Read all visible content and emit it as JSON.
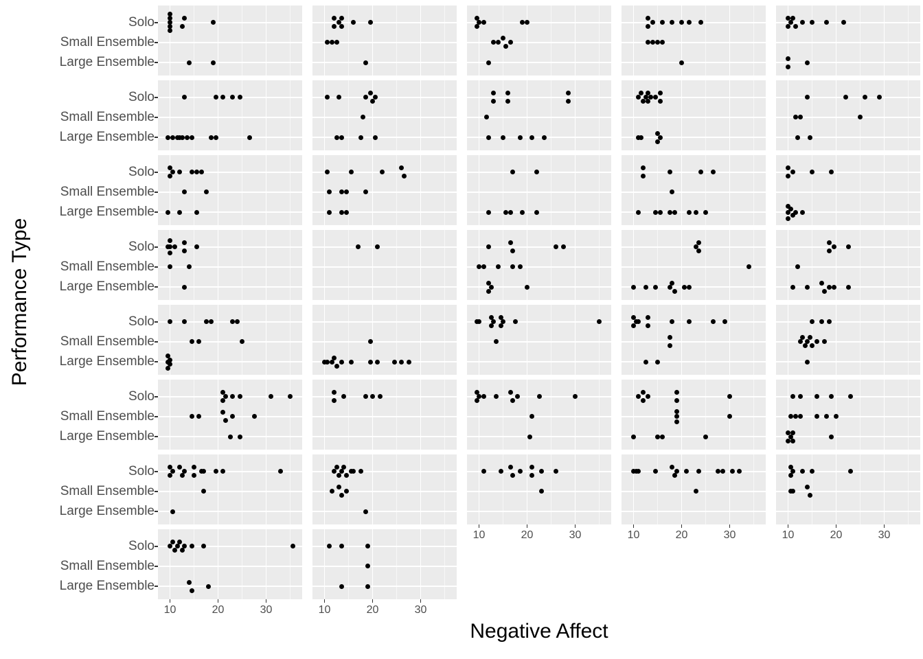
{
  "chart_data": {
    "type": "scatter",
    "title": "",
    "xlabel": "Negative Affect",
    "ylabel": "Performance Type",
    "x_ticks": [
      10,
      20,
      30
    ],
    "x_minor": [
      15,
      25,
      35
    ],
    "xlim": [
      7.5,
      37.5
    ],
    "y_categories": [
      "Solo",
      "Small Ensemble",
      "Large Ensemble"
    ],
    "grid": "on",
    "legend": "none",
    "point_color": "#000000",
    "panel_bg": "#EBEBEB",
    "grid_color": "#FFFFFF",
    "axis_text_color": "#4D4D4D",
    "tick_color": "#333333",
    "layout": {
      "ncol": 5,
      "nrow": 8,
      "n_facets": 37,
      "facets_in_last_row": 2
    },
    "facets": [
      {
        "r": 1,
        "c": 1,
        "pts": [
          [
            [
              10,
              -2
            ],
            [
              10,
              -1
            ],
            10,
            [
              10,
              1
            ],
            [
              10,
              2
            ],
            [
              12.5,
              1
            ],
            [
              13,
              -1
            ],
            19
          ],
          [],
          [
            14,
            19
          ]
        ]
      },
      {
        "r": 1,
        "c": 2,
        "pts": [
          [
            [
              12,
              -1
            ],
            [
              12,
              1
            ],
            13,
            [
              13.5,
              -1
            ],
            [
              13.5,
              1
            ],
            16,
            19.5
          ],
          [
            10.5,
            11.5,
            12.5
          ],
          [
            18.5
          ]
        ]
      },
      {
        "r": 1,
        "c": 3,
        "pts": [
          [
            [
              9.5,
              -1
            ],
            [
              9.5,
              1
            ],
            10,
            11,
            19,
            20
          ],
          [
            13,
            14,
            [
              15,
              -1
            ],
            [
              15.5,
              1
            ],
            16.5
          ],
          [
            12
          ]
        ]
      },
      {
        "r": 1,
        "c": 4,
        "pts": [
          [
            [
              13,
              -1
            ],
            [
              13,
              1
            ],
            14,
            16,
            18,
            20,
            21.5,
            24
          ],
          [
            13,
            14,
            15,
            16
          ],
          [
            20
          ]
        ]
      },
      {
        "r": 1,
        "c": 5,
        "pts": [
          [
            [
              10,
              -1
            ],
            [
              10,
              1
            ],
            10.5,
            [
              11,
              -1
            ],
            [
              11.5,
              1
            ],
            13,
            15,
            18,
            21.5
          ],
          [],
          [
            [
              10,
              -1
            ],
            [
              10,
              1
            ],
            14
          ]
        ]
      },
      {
        "r": 2,
        "c": 1,
        "pts": [
          [
            13,
            19.5,
            21,
            23,
            24.5
          ],
          [],
          [
            9.5,
            10.5,
            11.5,
            12,
            12.5,
            13.5,
            14.5,
            18.5,
            19.5,
            26.5
          ]
        ]
      },
      {
        "r": 2,
        "c": 2,
        "pts": [
          [
            10.5,
            13,
            18.5,
            [
              19.5,
              -1
            ],
            [
              20,
              1
            ],
            20.5
          ],
          [
            18
          ],
          [
            12.5,
            13.5,
            17.5,
            20.5
          ]
        ]
      },
      {
        "r": 2,
        "c": 3,
        "pts": [
          [
            [
              13,
              -1
            ],
            [
              13,
              1
            ],
            [
              16,
              -1
            ],
            [
              16,
              1
            ],
            [
              28.5,
              -1
            ],
            [
              28.5,
              1
            ]
          ],
          [
            11.5
          ],
          [
            12,
            15,
            18.5,
            21,
            23.5
          ]
        ]
      },
      {
        "r": 2,
        "c": 4,
        "pts": [
          [
            11,
            [
              11.5,
              -1
            ],
            [
              12,
              1
            ],
            12.5,
            [
              13,
              -1
            ],
            [
              13,
              1
            ],
            13.5,
            14.5,
            [
              15.5,
              -1
            ],
            [
              15.5,
              1
            ]
          ],
          [],
          [
            11,
            11.5,
            [
              15,
              -1
            ],
            [
              15,
              1
            ],
            15.5
          ]
        ]
      },
      {
        "r": 2,
        "c": 5,
        "pts": [
          [
            14,
            22,
            26,
            29
          ],
          [
            11.5,
            12.5,
            25
          ],
          [
            12,
            14.5
          ]
        ]
      },
      {
        "r": 3,
        "c": 1,
        "pts": [
          [
            [
              10,
              -1
            ],
            [
              10,
              1
            ],
            10.5,
            12,
            14.5,
            15.5,
            16.5
          ],
          [
            13,
            17.5
          ],
          [
            9.5,
            12,
            15.5
          ]
        ]
      },
      {
        "r": 3,
        "c": 2,
        "pts": [
          [
            10.5,
            15.5,
            22,
            [
              26,
              -1
            ],
            [
              26.5,
              1
            ]
          ],
          [
            11,
            13.5,
            14.5,
            18.5
          ],
          [
            11,
            13.5,
            14.5
          ]
        ]
      },
      {
        "r": 3,
        "c": 3,
        "pts": [
          [
            17,
            22
          ],
          [],
          [
            12,
            15.5,
            16.5,
            19,
            22
          ]
        ]
      },
      {
        "r": 3,
        "c": 4,
        "pts": [
          [
            [
              12,
              -1
            ],
            [
              12,
              1
            ],
            17.5,
            24,
            26.5
          ],
          [
            18
          ],
          [
            11,
            14.5,
            15.5,
            17.5,
            18.5,
            21.5,
            23,
            25
          ]
        ]
      },
      {
        "r": 3,
        "c": 5,
        "pts": [
          [
            [
              10,
              -1
            ],
            [
              10,
              1
            ],
            11,
            15,
            19
          ],
          [],
          [
            [
              10,
              -1.5
            ],
            10,
            [
              10,
              1.5
            ],
            [
              10.5,
              -0.7
            ],
            [
              11,
              0.7
            ],
            11.5,
            13
          ]
        ]
      },
      {
        "r": 4,
        "c": 1,
        "pts": [
          [
            9.5,
            [
              10,
              -1.5
            ],
            10,
            [
              10,
              1.5
            ],
            11,
            [
              13,
              -1
            ],
            [
              13,
              1
            ],
            15.5
          ],
          [
            10,
            14
          ],
          [
            13
          ]
        ]
      },
      {
        "r": 4,
        "c": 2,
        "pts": [
          [
            17,
            21
          ],
          [],
          []
        ]
      },
      {
        "r": 4,
        "c": 3,
        "pts": [
          [
            12,
            [
              16.5,
              -1
            ],
            [
              17,
              1
            ],
            26,
            27.5
          ],
          [
            10,
            11,
            14,
            17,
            18.5
          ],
          [
            [
              12,
              -1
            ],
            [
              12,
              1
            ],
            12.5,
            20
          ]
        ]
      },
      {
        "r": 4,
        "c": 4,
        "pts": [
          [
            23,
            [
              23.5,
              -1
            ],
            [
              23.5,
              1
            ]
          ],
          [
            34
          ],
          [
            10,
            12.5,
            14.5,
            17.5,
            [
              18,
              -1
            ],
            [
              18.5,
              1
            ],
            20.5,
            21.5
          ]
        ]
      },
      {
        "r": 4,
        "c": 5,
        "pts": [
          [
            [
              18.5,
              -1
            ],
            [
              18.5,
              1
            ],
            19.5,
            22.5
          ],
          [
            12
          ],
          [
            11,
            14,
            [
              17,
              -1
            ],
            [
              17.5,
              1
            ],
            18.5,
            19.5,
            22.5
          ]
        ]
      },
      {
        "r": 5,
        "c": 1,
        "pts": [
          [
            10,
            13,
            17.5,
            18.5,
            23,
            24
          ],
          [
            14.5,
            16,
            25
          ],
          [
            [
              9.5,
              -1.5
            ],
            9.5,
            [
              9.5,
              1.5
            ],
            [
              10,
              -0.5
            ],
            [
              10,
              0.5
            ]
          ]
        ]
      },
      {
        "r": 5,
        "c": 2,
        "pts": [
          [],
          [
            19.5
          ],
          [
            10,
            10.5,
            11.5,
            [
              12,
              -1
            ],
            [
              12.5,
              1
            ],
            13.5,
            15.5,
            19.5,
            21,
            24.5,
            26,
            27.5
          ]
        ]
      },
      {
        "r": 5,
        "c": 3,
        "pts": [
          [
            9.5,
            10,
            [
              12.5,
              -1
            ],
            [
              12.5,
              1
            ],
            13,
            [
              14.5,
              -1
            ],
            [
              14.5,
              1
            ],
            15,
            17.5,
            35
          ],
          [
            13.5
          ],
          []
        ]
      },
      {
        "r": 5,
        "c": 4,
        "pts": [
          [
            [
              10,
              -1
            ],
            [
              10,
              1
            ],
            10.5,
            11,
            [
              13,
              -1
            ],
            [
              13,
              1
            ],
            18,
            21.5,
            26.5,
            29
          ],
          [
            [
              17.5,
              -1
            ],
            [
              17.5,
              1
            ]
          ],
          [
            12.5,
            15
          ]
        ]
      },
      {
        "r": 5,
        "c": 5,
        "pts": [
          [
            15,
            17,
            18.5
          ],
          [
            12.5,
            [
              13,
              -1
            ],
            [
              13.5,
              1
            ],
            14,
            [
              14.5,
              -1
            ],
            [
              15,
              1
            ],
            16,
            17.5
          ],
          [
            14
          ]
        ]
      },
      {
        "r": 6,
        "c": 1,
        "pts": [
          [
            [
              21,
              -1
            ],
            [
              21,
              1
            ],
            21.5,
            23,
            24.5,
            31,
            35
          ],
          [
            14.5,
            16,
            [
              21,
              -1
            ],
            [
              21.5,
              1
            ],
            23,
            27.5
          ],
          [
            22.5,
            24.5
          ]
        ]
      },
      {
        "r": 6,
        "c": 2,
        "pts": [
          [
            [
              12,
              -1
            ],
            [
              12,
              1
            ],
            14,
            18.5,
            20,
            21.5
          ],
          [],
          []
        ]
      },
      {
        "r": 6,
        "c": 3,
        "pts": [
          [
            [
              9.5,
              -1
            ],
            [
              9.5,
              1
            ],
            10,
            11,
            13.5,
            [
              16.5,
              -1
            ],
            [
              17,
              1
            ],
            18,
            22.5,
            30
          ],
          [
            21
          ],
          [
            20.5
          ]
        ]
      },
      {
        "r": 6,
        "c": 4,
        "pts": [
          [
            11,
            [
              12,
              -1
            ],
            [
              12,
              1
            ],
            13,
            [
              19,
              -1
            ],
            [
              19,
              1
            ],
            30
          ],
          [
            [
              19,
              -1.3
            ],
            19,
            [
              19,
              1.3
            ],
            30
          ],
          [
            10,
            15,
            16,
            25
          ]
        ]
      },
      {
        "r": 6,
        "c": 5,
        "pts": [
          [
            11,
            12.5,
            16,
            19,
            23
          ],
          [
            10.5,
            11.5,
            12.5,
            16,
            18,
            20
          ],
          [
            [
              10,
              -1
            ],
            [
              10,
              1
            ],
            10.5,
            [
              11,
              -1
            ],
            [
              11,
              1
            ],
            19
          ]
        ]
      },
      {
        "r": 7,
        "c": 1,
        "pts": [
          [
            [
              10,
              -1
            ],
            [
              10,
              1
            ],
            10.5,
            [
              12,
              -1
            ],
            [
              12.5,
              1
            ],
            13,
            [
              15,
              -1
            ],
            [
              15,
              1
            ],
            16.5,
            17,
            19.5,
            21,
            33
          ],
          [
            17
          ],
          [
            10.5
          ]
        ]
      },
      {
        "r": 7,
        "c": 2,
        "pts": [
          [
            12,
            [
              12.5,
              -1
            ],
            [
              13,
              1
            ],
            13.5,
            [
              14,
              -1
            ],
            [
              14.5,
              1
            ],
            15.5,
            16,
            17.5
          ],
          [
            11.5,
            [
              13,
              -1
            ],
            [
              13.5,
              1
            ],
            14.5
          ],
          [
            18.5
          ]
        ]
      },
      {
        "r": 7,
        "c": 3,
        "pts": [
          [
            11,
            14.5,
            [
              16.5,
              -1
            ],
            [
              17,
              1
            ],
            18.5,
            [
              21,
              -1
            ],
            [
              21,
              1
            ],
            23,
            26
          ],
          [
            23
          ],
          []
        ]
      },
      {
        "r": 7,
        "c": 4,
        "pts": [
          [
            10,
            10.5,
            11,
            14.5,
            [
              18,
              -1
            ],
            [
              18.5,
              1
            ],
            19,
            21,
            23.5,
            27.5,
            28.5,
            30.5,
            32
          ],
          [
            23
          ],
          []
        ]
      },
      {
        "r": 7,
        "c": 5,
        "pts": [
          [
            [
              10.5,
              -1
            ],
            [
              10.5,
              1
            ],
            11,
            13,
            15,
            23
          ],
          [
            10.5,
            11,
            [
              14,
              -1
            ],
            [
              14.5,
              1
            ]
          ],
          []
        ]
      },
      {
        "r": 8,
        "c": 1,
        "pts": [
          [
            10,
            [
              10.5,
              -1
            ],
            [
              11,
              1
            ],
            11.5,
            [
              12,
              -1
            ],
            [
              12.5,
              1
            ],
            13,
            14.5,
            17,
            35.5
          ],
          [],
          [
            [
              14,
              -1
            ],
            [
              14.5,
              1
            ],
            18
          ]
        ]
      },
      {
        "r": 8,
        "c": 2,
        "pts": [
          [
            11,
            13.5,
            19
          ],
          [
            19
          ],
          [
            13.5,
            19
          ]
        ]
      }
    ]
  }
}
